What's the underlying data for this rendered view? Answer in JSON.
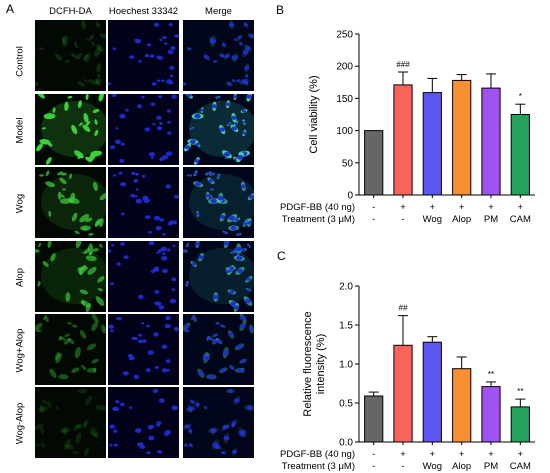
{
  "panels": {
    "a_letter": "A",
    "b_letter": "B",
    "c_letter": "C"
  },
  "microscopy": {
    "columns": [
      "DCFH-DA",
      "Hoechest 33342",
      "Merge"
    ],
    "rows": [
      "Control",
      "Model",
      "Wog",
      "Alop",
      "Wog+Alop",
      "Wog-Alop"
    ],
    "green_intensity": [
      0.12,
      0.85,
      0.6,
      0.55,
      0.3,
      0.08
    ],
    "blue_color": "#1f2bd6",
    "green_color": "#3bd23b"
  },
  "chart_data": [
    {
      "type": "bar",
      "panel": "B",
      "ylabel": "Cell viability (%)",
      "ylim": [
        0,
        250
      ],
      "yticks": [
        0,
        50,
        100,
        150,
        200,
        250
      ],
      "categories": [
        "Control",
        "PDGF-BB",
        "Wog",
        "Alop",
        "PM",
        "CAM"
      ],
      "values": [
        100,
        171,
        159,
        178,
        166,
        125
      ],
      "errors": [
        0,
        20,
        22,
        9,
        22,
        16
      ],
      "annotations": [
        "",
        "###",
        "",
        "",
        "",
        "*"
      ],
      "colors": [
        "#666666",
        "#f8645a",
        "#5b55f2",
        "#f98f33",
        "#a052f0",
        "#23a35a"
      ],
      "condition_rows": [
        {
          "label": "PDGF-BB (40 ng)",
          "values": [
            "-",
            "+",
            "+",
            "+",
            "+",
            "+"
          ]
        },
        {
          "label": "Treatment (3 μM)",
          "values": [
            "-",
            "-",
            "Wog",
            "Alop",
            "PM",
            "CAM"
          ]
        }
      ]
    },
    {
      "type": "bar",
      "panel": "C",
      "ylabel": "Relative fluorescence intensity (%)",
      "ylabel_lines": [
        "Relative fluorescence",
        "intensity (%)"
      ],
      "ylim": [
        0,
        2.0
      ],
      "yticks": [
        "0.0",
        "0.5",
        "1.0",
        "1.5",
        "2.0"
      ],
      "categories": [
        "Control",
        "PDGF-BB",
        "Wog",
        "Alop",
        "PM",
        "CAM"
      ],
      "values": [
        0.59,
        1.24,
        1.28,
        0.94,
        0.71,
        0.45
      ],
      "errors": [
        0.05,
        0.38,
        0.07,
        0.15,
        0.06,
        0.1
      ],
      "annotations": [
        "",
        "##",
        "",
        "",
        "**",
        "**"
      ],
      "colors": [
        "#666666",
        "#f8645a",
        "#5b55f2",
        "#f98f33",
        "#a052f0",
        "#23a35a"
      ],
      "condition_rows": [
        {
          "label": "PDGF-BB (40 ng)",
          "values": [
            "-",
            "+",
            "+",
            "+",
            "+",
            "+"
          ]
        },
        {
          "label": "Treatment (3 μM)",
          "values": [
            "-",
            "-",
            "Wog",
            "Alop",
            "PM",
            "CAM"
          ]
        }
      ]
    }
  ]
}
